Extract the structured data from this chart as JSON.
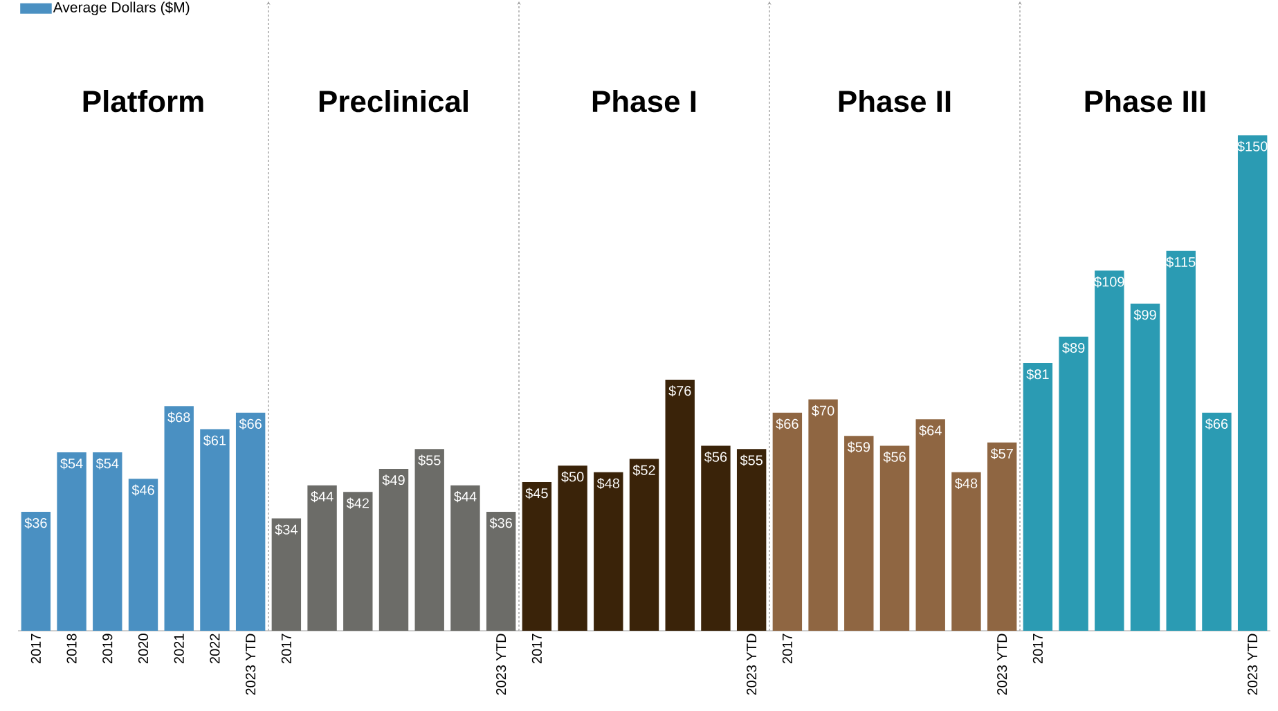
{
  "chart_data": [
    {
      "type": "bar",
      "title": "Platform",
      "categories": [
        "2017",
        "2018",
        "2019",
        "2020",
        "2021",
        "2022",
        "2023 YTD"
      ],
      "legend": "top left",
      "series": [
        {
          "name": "Average Dollars ($M)",
          "color": "#4a90c2",
          "values": [
            36,
            54,
            54,
            46,
            68,
            61,
            66
          ],
          "value_labels": [
            "$36",
            "$54",
            "$54",
            "$46",
            "$68",
            "$61",
            "$66"
          ]
        }
      ]
    },
    {
      "type": "bar",
      "title": "Preclinical",
      "categories": [
        "2017",
        null,
        null,
        null,
        null,
        null,
        "2023 YTD"
      ],
      "series": [
        {
          "color": "#6c6c68",
          "values": [
            34,
            44,
            42,
            49,
            55,
            44,
            36
          ],
          "value_labels": [
            "$34",
            "$44",
            "$42",
            "$49",
            "$55",
            "$44",
            "$36"
          ]
        }
      ]
    },
    {
      "type": "bar",
      "title": "Phase I",
      "categories": [
        "2017",
        null,
        null,
        null,
        null,
        null,
        "2023 YTD"
      ],
      "series": [
        {
          "color": "#3a2309",
          "values": [
            45,
            50,
            48,
            52,
            76,
            56,
            55
          ],
          "value_labels": [
            "$45",
            "$50",
            "$48",
            "$52",
            "$76",
            "$56",
            "$55"
          ]
        }
      ]
    },
    {
      "type": "bar",
      "title": "Phase II",
      "categories": [
        "2017",
        null,
        null,
        null,
        null,
        null,
        "2023 YTD"
      ],
      "series": [
        {
          "color": "#8f6642",
          "values": [
            66,
            70,
            59,
            56,
            64,
            48,
            57
          ],
          "value_labels": [
            "$66",
            "$70",
            "$59",
            "$56",
            "$64",
            "$48",
            "$57"
          ]
        }
      ]
    },
    {
      "type": "bar",
      "title": "Phase III",
      "categories": [
        "2017",
        null,
        null,
        null,
        null,
        null,
        "2023 YTD"
      ],
      "series": [
        {
          "color": "#2b9bb3",
          "values": [
            81,
            89,
            109,
            99,
            115,
            66,
            150
          ],
          "value_labels": [
            "$81",
            "$89",
            "$109",
            "$99",
            "$115",
            "$66",
            "$150"
          ]
        }
      ]
    }
  ]
}
